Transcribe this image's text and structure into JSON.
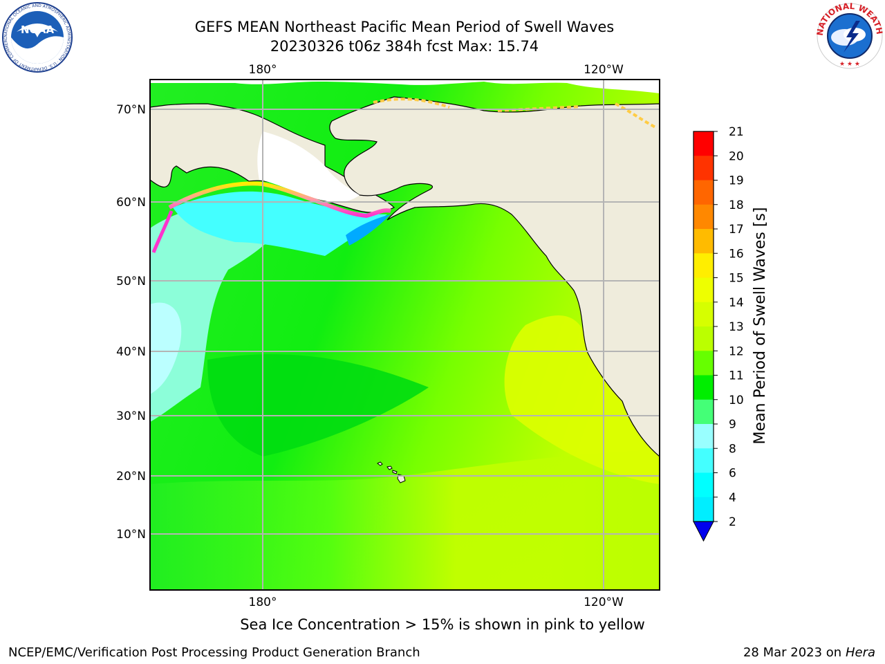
{
  "header": {
    "title_line1": "GEFS MEAN Northeast Pacific Mean Period of Swell Waves",
    "title_line2": "20230326 t06z 384h fcst   Max: 15.74"
  },
  "logos": {
    "left": {
      "name": "NOAA",
      "ring_text": "NATIONAL OCEANIC AND ATMOSPHERIC ADMINISTRATION · U.S. DEPARTMENT OF COMMERCE"
    },
    "right": {
      "name": "NATIONAL WEATHER SERVICE"
    }
  },
  "map": {
    "lon_labels": [
      "180°",
      "120°W"
    ],
    "lat_labels": [
      "70°N",
      "60°N",
      "50°N",
      "40°N",
      "30°N",
      "20°N",
      "10°N"
    ],
    "land_color": "#efecdc",
    "grid_color": "#b4b4b4"
  },
  "colorbar": {
    "label": "Mean Period of Swell Waves [s]",
    "ticks": [
      "21",
      "20",
      "19",
      "18",
      "17",
      "16",
      "15",
      "14",
      "13",
      "12",
      "11",
      "10",
      "9",
      "8",
      "6",
      "4",
      "2"
    ],
    "colors": [
      "#ff0000",
      "#ff3300",
      "#ff6600",
      "#ff8800",
      "#ffbb00",
      "#ffee00",
      "#eeff00",
      "#d6ff00",
      "#bbff00",
      "#66ff00",
      "#00ee00",
      "#44ff77",
      "#99ffff",
      "#44ffff",
      "#00ffff",
      "#00eeff",
      "#0077ff"
    ],
    "extend_color": "#0000ee"
  },
  "footer": {
    "note": "Sea Ice Concentration > 15% is shown in pink to yellow",
    "left": "NCEP/EMC/Verification Post Processing Product Generation Branch",
    "date": "28 Mar 2023 on",
    "machine": "Hera"
  }
}
